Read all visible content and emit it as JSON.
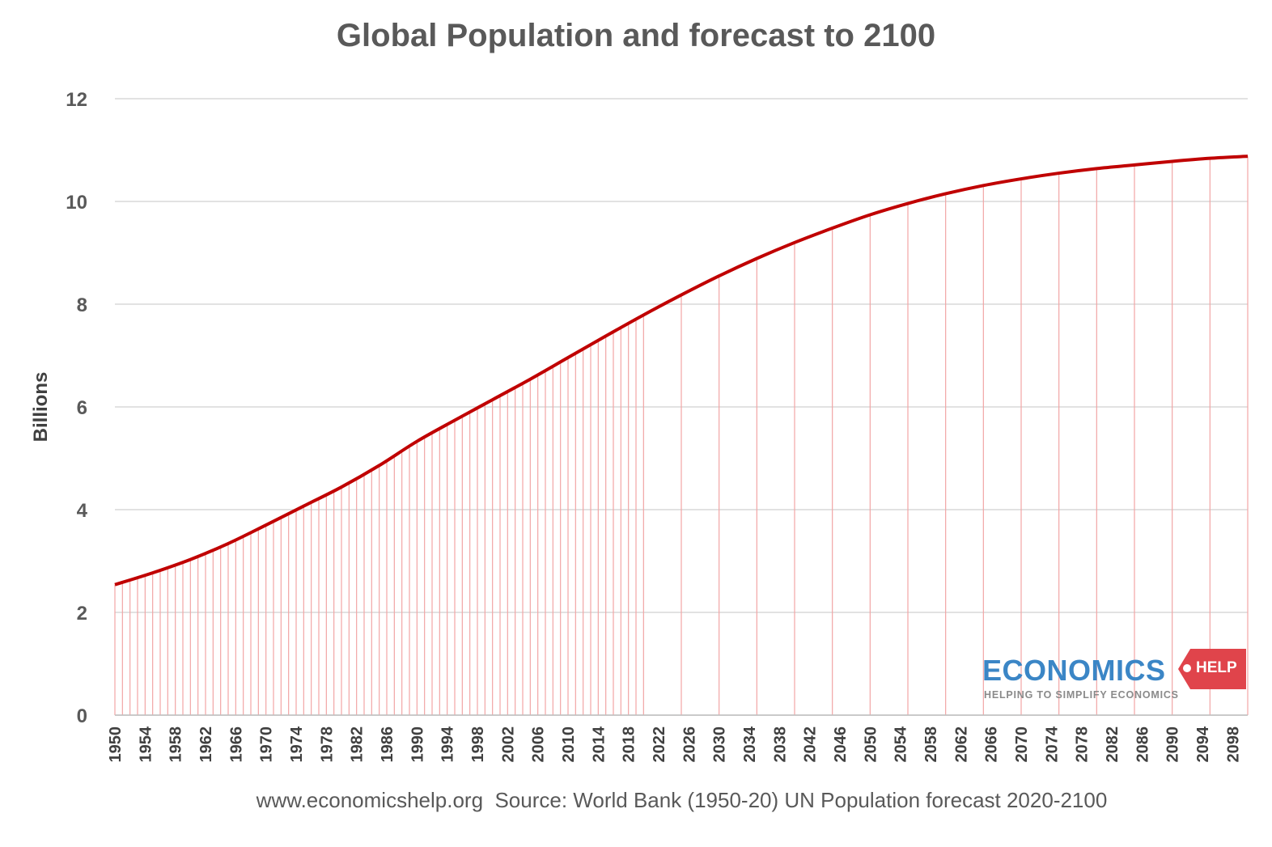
{
  "chart_data": {
    "type": "area",
    "title": "Global Population and forecast to 2100",
    "ylabel": "Billions",
    "xlabel": "",
    "ylim": [
      0,
      12
    ],
    "yticks": [
      "0",
      "2",
      "4",
      "6",
      "8",
      "10",
      "12"
    ],
    "xlim": [
      1950,
      2100
    ],
    "xticks": [
      "1950",
      "1954",
      "1958",
      "1962",
      "1966",
      "1970",
      "1974",
      "1978",
      "1982",
      "1986",
      "1990",
      "1994",
      "1998",
      "2002",
      "2006",
      "2010",
      "2014",
      "2018",
      "2022",
      "2026",
      "2030",
      "2034",
      "2038",
      "2042",
      "2046",
      "2050",
      "2054",
      "2058",
      "2062",
      "2066",
      "2070",
      "2074",
      "2078",
      "2082",
      "2086",
      "2090",
      "2094",
      "2098"
    ],
    "grid": true,
    "series": [
      {
        "color": "#c00000",
        "x": [
          1950,
          1955,
          1960,
          1965,
          1970,
          1975,
          1980,
          1985,
          1990,
          1995,
          2000,
          2005,
          2010,
          2015,
          2020,
          2025,
          2030,
          2035,
          2040,
          2045,
          2050,
          2055,
          2060,
          2065,
          2070,
          2075,
          2080,
          2085,
          2090,
          2095,
          2100
        ],
        "y": [
          2.54,
          2.77,
          3.03,
          3.34,
          3.7,
          4.07,
          4.44,
          4.86,
          5.33,
          5.74,
          6.14,
          6.54,
          6.96,
          7.38,
          7.79,
          8.18,
          8.55,
          8.89,
          9.2,
          9.48,
          9.74,
          9.96,
          10.15,
          10.31,
          10.44,
          10.55,
          10.64,
          10.71,
          10.78,
          10.84,
          10.88
        ]
      }
    ],
    "drop_lines": {
      "color": "#f2a5a5",
      "historical_step_years": 1,
      "historical_end": 2020,
      "forecast_step_years": 5
    }
  },
  "footer": {
    "source_text": "www.economicshelp.org  Source: World Bank (1950-20) UN Population forecast 2020-2100"
  },
  "logo": {
    "word": "ECONOMICS",
    "tag": "HELP",
    "tagline": "HELPING TO SIMPLIFY ECONOMICS",
    "word_color": "#3b86c6",
    "tag_color": "#e0444b"
  }
}
